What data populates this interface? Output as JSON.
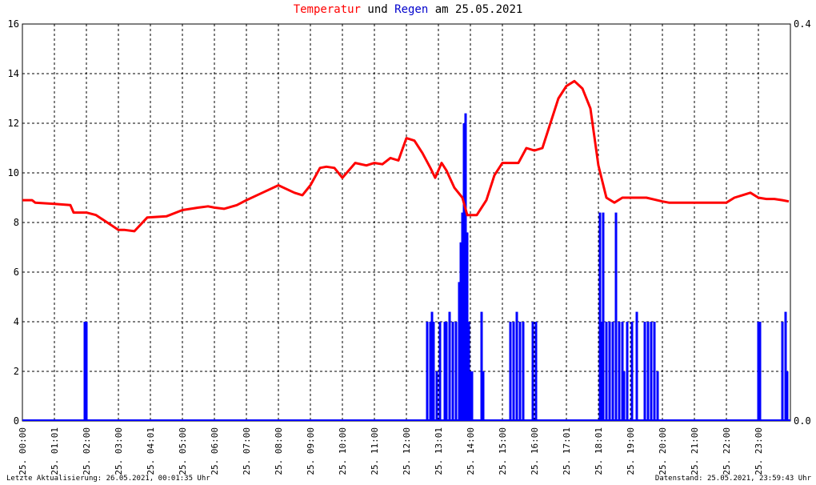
{
  "title": {
    "part1": "Temperatur",
    "part2": " und ",
    "part3": "Regen",
    "part4": " am 25.05.2021"
  },
  "footer": {
    "left": "Letzte Aktualisierung: 26.05.2021, 00:01:35 Uhr",
    "right": "Datenstand: 25.05.2021, 23:59:43 Uhr"
  },
  "colors": {
    "temp": "#ff0000",
    "rain": "#0000ff",
    "grid": "#000000"
  },
  "chart_data": {
    "type": "line",
    "x_unit": "hours",
    "xlim": [
      0,
      24
    ],
    "ylim_left": [
      0,
      16
    ],
    "ylim_right": [
      0,
      0.4
    ],
    "y_ticks_left": [
      "0",
      "2",
      "4",
      "6",
      "8",
      "10",
      "12",
      "14",
      "16"
    ],
    "y_ticks_right": [
      "0.0",
      "0.4"
    ],
    "x_ticks": [
      "25. 00:00",
      "25. 01:01",
      "25. 02:00",
      "25. 03:00",
      "25. 04:01",
      "25. 05:00",
      "25. 06:00",
      "25. 07:00",
      "25. 08:00",
      "25. 09:00",
      "25. 10:00",
      "25. 11:00",
      "25. 12:00",
      "25. 13:01",
      "25. 14:00",
      "25. 15:00",
      "25. 16:00",
      "25. 17:01",
      "25. 18:01",
      "25. 19:00",
      "25. 20:00",
      "25. 21:00",
      "25. 22:00",
      "25. 23:00"
    ],
    "grid": true,
    "series": [
      {
        "name": "Temperatur",
        "axis": "left",
        "style": "line",
        "x": [
          0,
          0.3,
          0.4,
          1.0,
          1.5,
          1.6,
          2.0,
          2.3,
          3.0,
          3.2,
          3.5,
          3.9,
          4.5,
          5.0,
          5.5,
          5.8,
          6.0,
          6.3,
          6.7,
          7.0,
          7.5,
          8.0,
          8.5,
          8.75,
          9.0,
          9.3,
          9.5,
          9.75,
          10.0,
          10.4,
          10.75,
          11.0,
          11.25,
          11.5,
          11.75,
          12.0,
          12.25,
          12.5,
          12.75,
          12.9,
          13.1,
          13.25,
          13.5,
          13.75,
          13.9,
          14.2,
          14.5,
          14.75,
          15.0,
          15.25,
          15.5,
          15.75,
          16.0,
          16.25,
          16.5,
          16.75,
          17.0,
          17.25,
          17.5,
          17.75,
          18.0,
          18.25,
          18.5,
          18.75,
          19.0,
          19.5,
          20.0,
          20.2,
          20.5,
          21.0,
          21.5,
          22.0,
          22.25,
          22.5,
          22.75,
          23.0,
          23.25,
          23.5,
          23.75,
          23.95
        ],
        "values": [
          8.9,
          8.9,
          8.8,
          8.75,
          8.7,
          8.4,
          8.4,
          8.3,
          7.7,
          7.7,
          7.65,
          8.2,
          8.25,
          8.5,
          8.6,
          8.65,
          8.6,
          8.55,
          8.7,
          8.9,
          9.2,
          9.5,
          9.2,
          9.1,
          9.5,
          10.2,
          10.25,
          10.2,
          9.8,
          10.4,
          10.3,
          10.4,
          10.35,
          10.6,
          10.5,
          11.4,
          11.3,
          10.8,
          10.2,
          9.8,
          10.4,
          10.1,
          9.4,
          9.0,
          8.3,
          8.3,
          8.9,
          9.9,
          10.4,
          10.4,
          10.4,
          11.0,
          10.9,
          11.0,
          12.0,
          13.0,
          13.5,
          13.7,
          13.4,
          12.6,
          10.3,
          9.0,
          8.8,
          9.0,
          9.0,
          9.0,
          8.85,
          8.8,
          8.8,
          8.8,
          8.8,
          8.8,
          9.0,
          9.1,
          9.2,
          9.0,
          8.95,
          8.95,
          8.9,
          8.85
        ]
      },
      {
        "name": "Regen",
        "axis": "right",
        "style": "bars",
        "x": [
          1.95,
          2.0,
          12.65,
          12.75,
          12.8,
          12.85,
          12.95,
          13.05,
          13.2,
          13.25,
          13.35,
          13.45,
          13.55,
          13.65,
          13.7,
          13.75,
          13.8,
          13.85,
          13.9,
          13.95,
          14.0,
          14.05,
          14.35,
          14.4,
          15.25,
          15.35,
          15.45,
          15.55,
          15.65,
          15.95,
          16.05,
          18.05,
          18.1,
          18.15,
          18.25,
          18.35,
          18.45,
          18.55,
          18.65,
          18.75,
          18.8,
          18.9,
          19.05,
          19.2,
          19.45,
          19.55,
          19.65,
          19.75,
          19.85,
          23.0,
          23.05,
          23.75,
          23.85,
          23.9
        ],
        "values": [
          0.1,
          0.1,
          0.1,
          0.1,
          0.11,
          0.1,
          0.05,
          0.1,
          0.1,
          0.1,
          0.11,
          0.1,
          0.1,
          0.14,
          0.18,
          0.21,
          0.3,
          0.31,
          0.19,
          0.1,
          0.05,
          0.05,
          0.11,
          0.05,
          0.1,
          0.1,
          0.11,
          0.1,
          0.1,
          0.1,
          0.1,
          0.21,
          0.1,
          0.21,
          0.1,
          0.1,
          0.1,
          0.21,
          0.1,
          0.1,
          0.05,
          0.1,
          0.1,
          0.11,
          0.1,
          0.1,
          0.1,
          0.1,
          0.05,
          0.1,
          0.1,
          0.1,
          0.11,
          0.05
        ]
      }
    ]
  }
}
